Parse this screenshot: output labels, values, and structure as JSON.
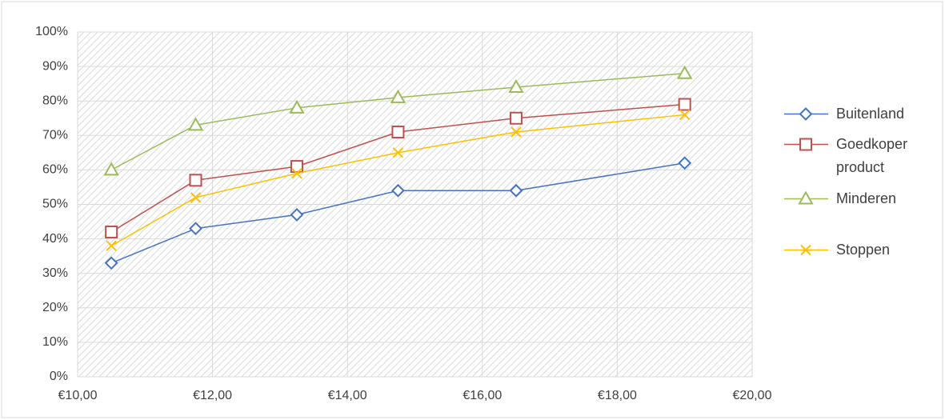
{
  "chart_data": {
    "type": "line",
    "x": [
      10.5,
      11.75,
      13.25,
      14.75,
      16.5,
      19
    ],
    "series": [
      {
        "name": "Buitenland",
        "color": "#4472c4",
        "marker": "diamond",
        "values": [
          33,
          43,
          47,
          54,
          54,
          62
        ]
      },
      {
        "name": "Goedkoper product",
        "color": "#c0504d",
        "marker": "square",
        "values": [
          42,
          57,
          61,
          71,
          75,
          79
        ]
      },
      {
        "name": "Minderen",
        "color": "#9bbb59",
        "marker": "triangle",
        "values": [
          60,
          73,
          78,
          81,
          84,
          88
        ]
      },
      {
        "name": "Stoppen",
        "color": "#ffc000",
        "marker": "x",
        "values": [
          38,
          52,
          59,
          65,
          71,
          76
        ]
      }
    ],
    "xlim": [
      10,
      20
    ],
    "xticks": [
      {
        "value": 10,
        "label": "€10,00"
      },
      {
        "value": 12,
        "label": "€12,00"
      },
      {
        "value": 14,
        "label": "€14,00"
      },
      {
        "value": 16,
        "label": "€16,00"
      },
      {
        "value": 18,
        "label": "€18,00"
      },
      {
        "value": 20,
        "label": "€20,00"
      }
    ],
    "ylim": [
      0,
      100
    ],
    "yticks": [
      {
        "value": 0,
        "label": "0%"
      },
      {
        "value": 10,
        "label": "10%"
      },
      {
        "value": 20,
        "label": "20%"
      },
      {
        "value": 30,
        "label": "30%"
      },
      {
        "value": 40,
        "label": "40%"
      },
      {
        "value": 50,
        "label": "50%"
      },
      {
        "value": 60,
        "label": "60%"
      },
      {
        "value": 70,
        "label": "70%"
      },
      {
        "value": 80,
        "label": "80%"
      },
      {
        "value": 90,
        "label": "90%"
      },
      {
        "value": 100,
        "label": "100%"
      }
    ],
    "grid": true,
    "legend": "right"
  }
}
